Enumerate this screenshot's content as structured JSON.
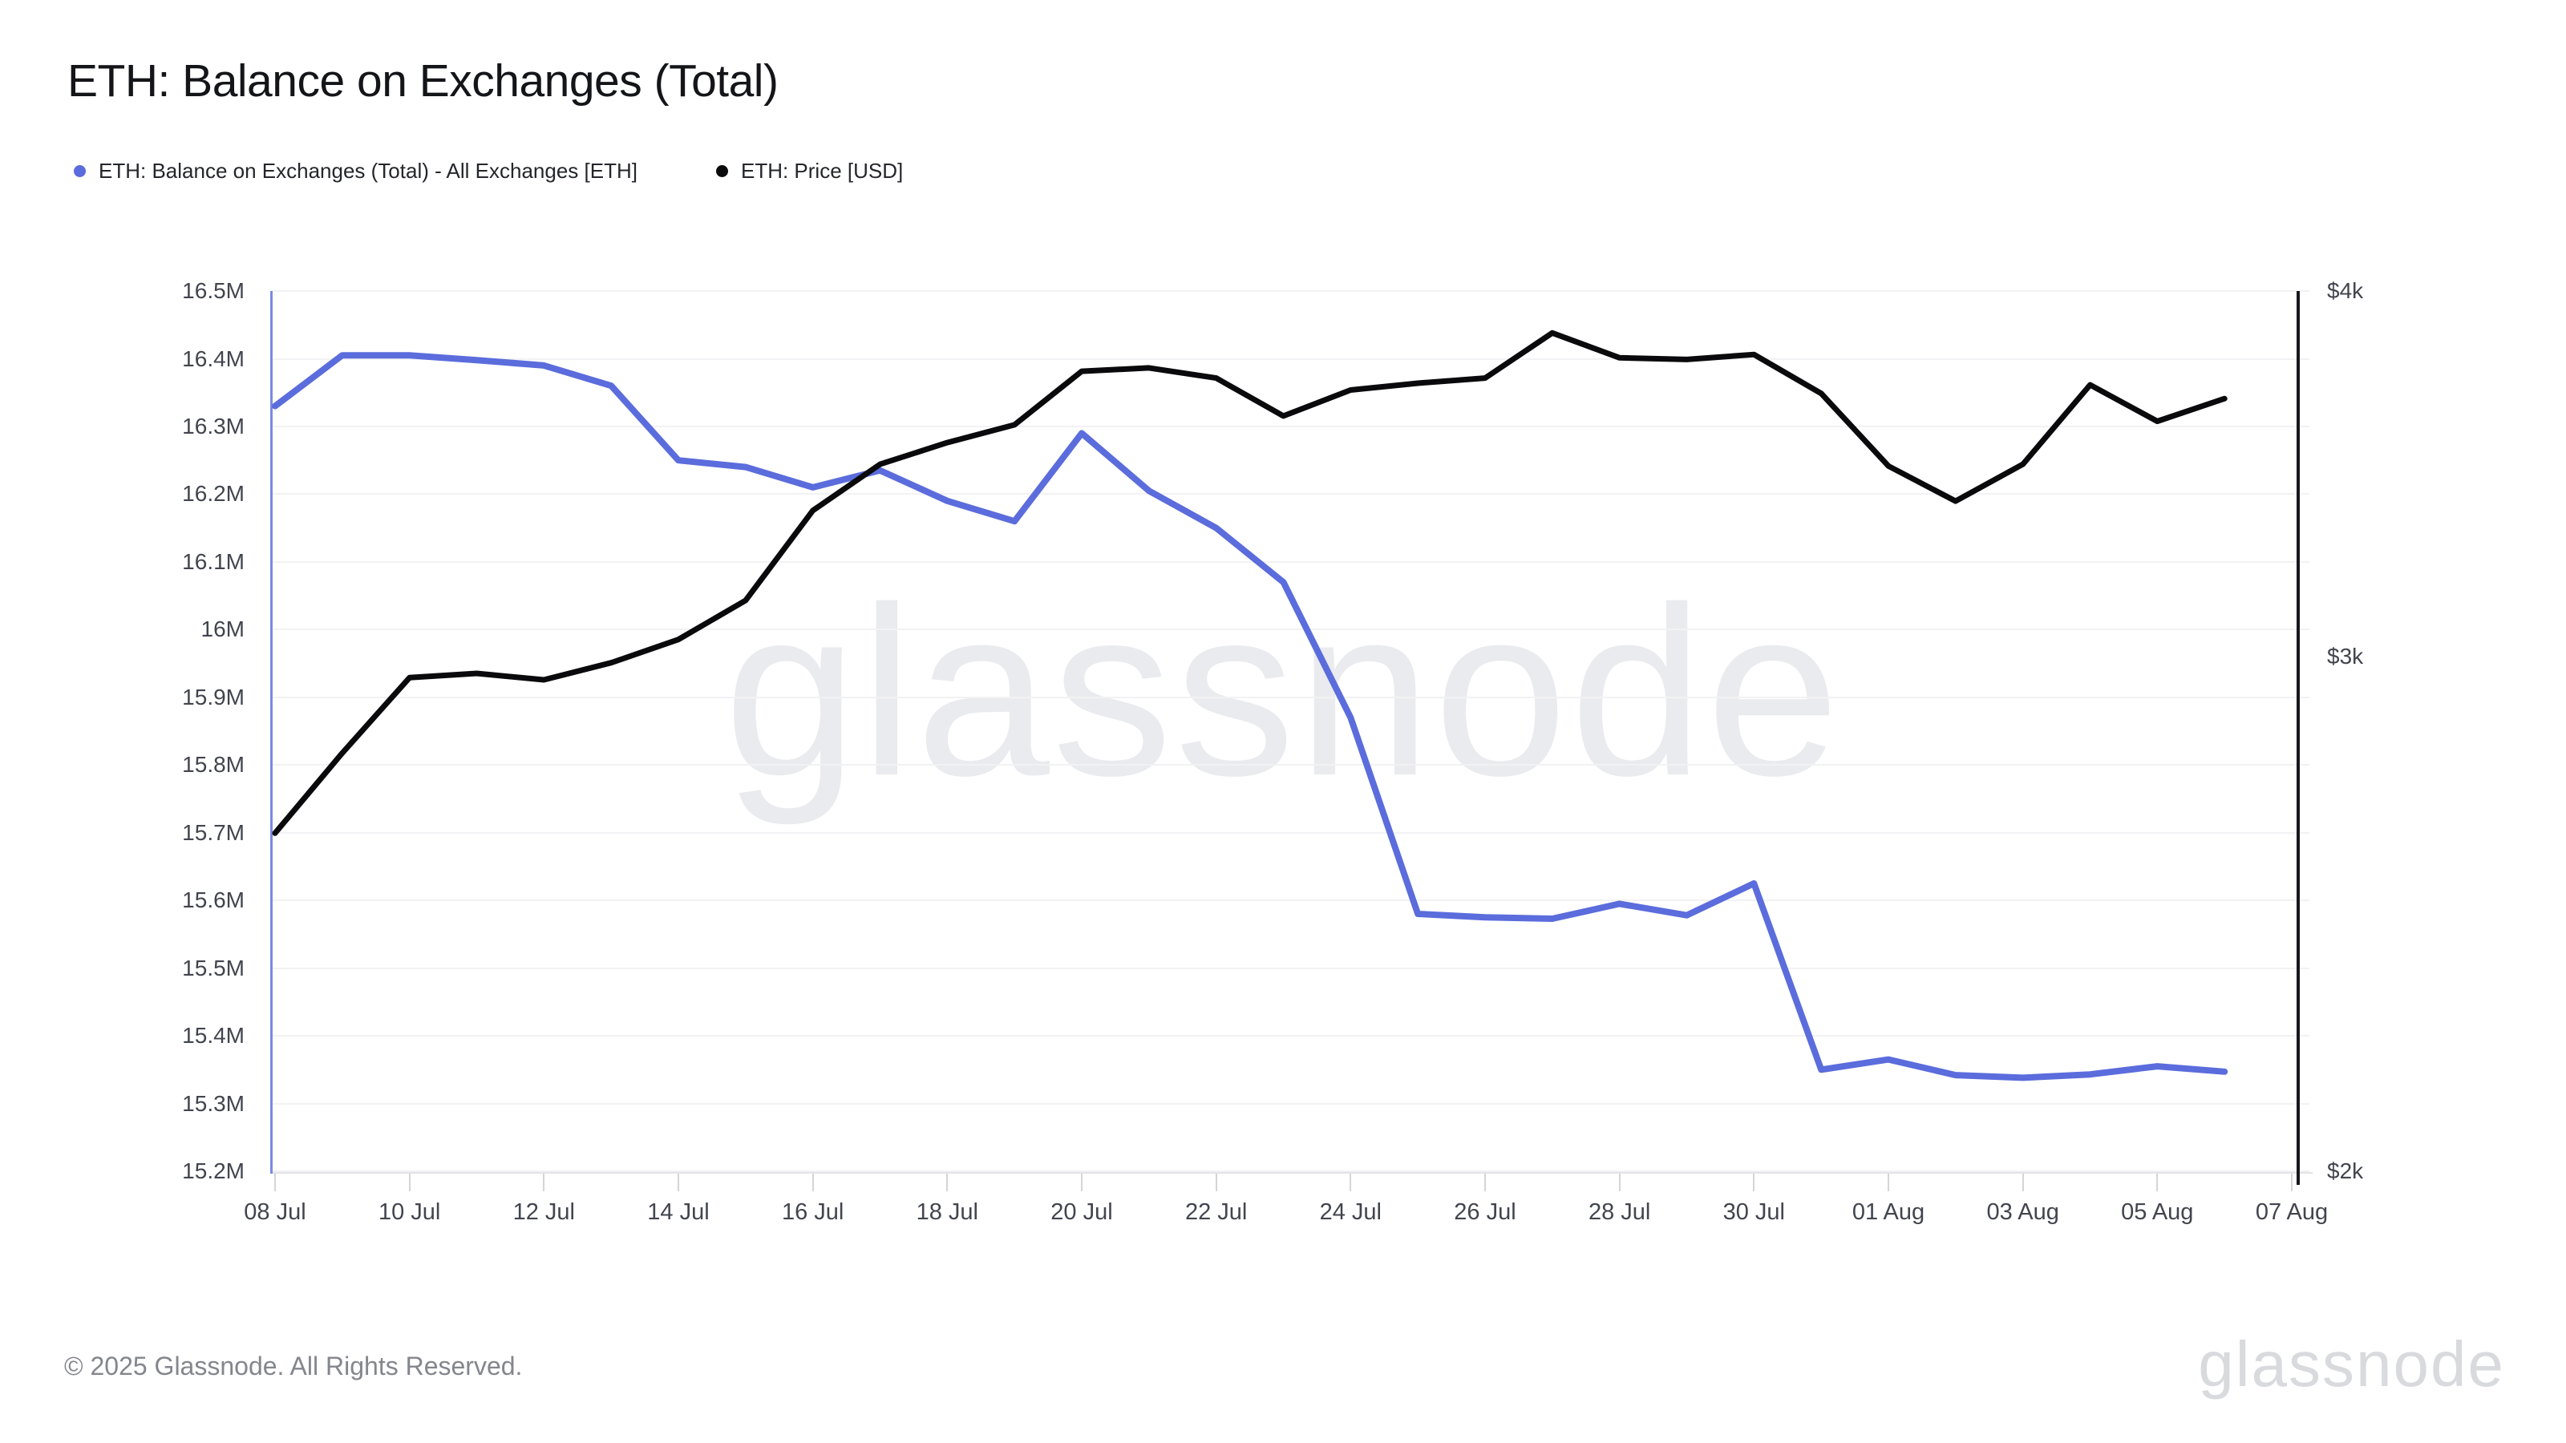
{
  "page": {
    "title": "ETH: Balance on Exchanges (Total)",
    "footer_copyright": "© 2025 Glassnode. All Rights Reserved.",
    "watermark_center": "glassnode",
    "watermark_corner": "glassnode"
  },
  "legend": {
    "items": [
      {
        "label": "ETH: Balance on Exchanges (Total) - All Exchanges [ETH]",
        "color": "#5b6cdc"
      },
      {
        "label": "ETH: Price [USD]",
        "color": "#0a0a0c"
      }
    ]
  },
  "chart_data": {
    "type": "line",
    "title": "ETH: Balance on Exchanges (Total)",
    "x_tick_labels": [
      "08 Jul",
      "10 Jul",
      "12 Jul",
      "14 Jul",
      "16 Jul",
      "18 Jul",
      "20 Jul",
      "22 Jul",
      "24 Jul",
      "26 Jul",
      "28 Jul",
      "30 Jul",
      "01 Aug",
      "03 Aug",
      "05 Aug",
      "07 Aug"
    ],
    "x_span_days": 30,
    "dates": [
      "08 Jul",
      "09 Jul",
      "10 Jul",
      "11 Jul",
      "12 Jul",
      "13 Jul",
      "14 Jul",
      "15 Jul",
      "16 Jul",
      "17 Jul",
      "18 Jul",
      "19 Jul",
      "20 Jul",
      "21 Jul",
      "22 Jul",
      "23 Jul",
      "24 Jul",
      "25 Jul",
      "26 Jul",
      "27 Jul",
      "28 Jul",
      "29 Jul",
      "30 Jul",
      "31 Jul",
      "01 Aug",
      "02 Aug",
      "03 Aug",
      "04 Aug",
      "05 Aug",
      "06 Aug"
    ],
    "left_axis": {
      "scale": "linear",
      "unit": "M ETH",
      "min": 15.2,
      "max": 16.5,
      "tick_step": 0.1,
      "tick_labels": [
        "16.5M",
        "16.4M",
        "16.3M",
        "16.2M",
        "16.1M",
        "16M",
        "15.9M",
        "15.8M",
        "15.7M",
        "15.6M",
        "15.5M",
        "15.4M",
        "15.3M",
        "15.2M"
      ]
    },
    "right_axis": {
      "scale": "log",
      "unit": "USD",
      "min": 2000,
      "max": 4000,
      "tick_values": [
        4000,
        3000,
        2000
      ],
      "tick_labels": [
        "$4k",
        "$3k",
        "$2k"
      ]
    },
    "grid": "horizontal",
    "legend_position": "top-left",
    "series": [
      {
        "name": "ETH: Balance on Exchanges (Total) - All Exchanges [ETH]",
        "axis": "left",
        "color": "#5b6cdc",
        "stroke_width": 8,
        "values": [
          16.33,
          16.405,
          16.405,
          16.398,
          16.39,
          16.36,
          16.25,
          16.24,
          16.21,
          16.235,
          16.19,
          16.16,
          16.29,
          16.205,
          16.15,
          16.07,
          15.87,
          15.58,
          15.575,
          15.573,
          15.595,
          15.578,
          15.625,
          15.35,
          15.365,
          15.342,
          15.338,
          15.343,
          15.355,
          15.347
        ]
      },
      {
        "name": "ETH: Price [USD]",
        "axis": "right",
        "color": "#0a0a0c",
        "stroke_width": 7,
        "values": [
          2610,
          2780,
          2950,
          2960,
          2945,
          2985,
          3040,
          3135,
          3365,
          3490,
          3550,
          3600,
          3755,
          3765,
          3735,
          3625,
          3700,
          3720,
          3735,
          3870,
          3795,
          3790,
          3805,
          3690,
          3485,
          3390,
          3490,
          3715,
          3610,
          3675
        ]
      }
    ]
  }
}
